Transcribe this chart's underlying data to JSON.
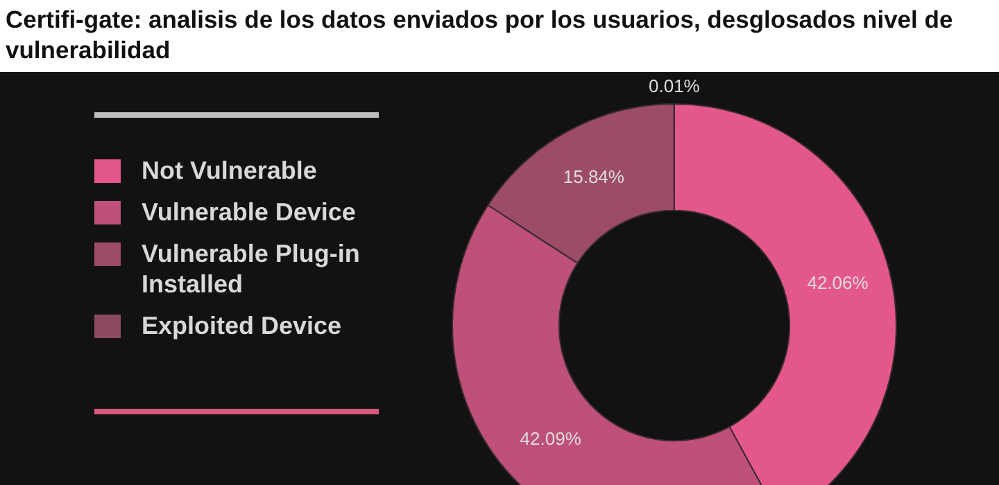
{
  "chart_data": {
    "type": "donut",
    "title": "Certifi-gate: analisis de los datos enviados por los usuarios, desglosados nivel de vulnerabilidad",
    "categories": [
      "Not Vulnerable",
      "Vulnerable Device",
      "Vulnerable Plug-in Installed",
      "Exploited Device"
    ],
    "values": [
      42.06,
      42.09,
      15.84,
      0.01
    ],
    "colors": [
      "#e4578a",
      "#bf5079",
      "#9c4b68",
      "#8c4a62"
    ],
    "value_labels": [
      "42.06%",
      "42.09%",
      "15.84%",
      "0.01%"
    ],
    "legend": "left"
  }
}
